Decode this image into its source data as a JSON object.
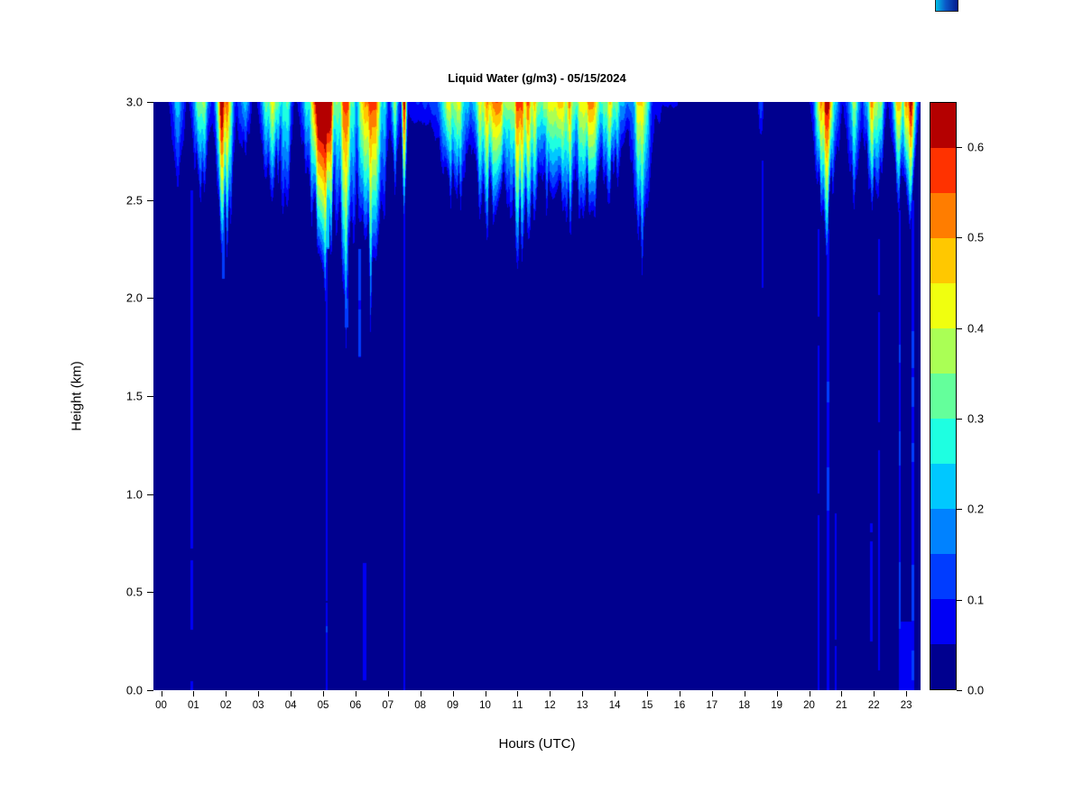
{
  "page": {
    "background": "#ffffff"
  },
  "chart_data": {
    "type": "heatmap",
    "title": "Liquid Water (g/m3) - 05/15/2024",
    "xlabel": "Hours (UTC)",
    "ylabel": "Height (km)",
    "units": "g/m3",
    "x_range_hours": [
      0,
      24
    ],
    "y_range_km": [
      0.0,
      3.0
    ],
    "x_ticks": [
      "00",
      "01",
      "02",
      "03",
      "04",
      "05",
      "06",
      "07",
      "08",
      "09",
      "10",
      "11",
      "12",
      "13",
      "14",
      "15",
      "16",
      "17",
      "18",
      "19",
      "20",
      "21",
      "22",
      "23"
    ],
    "y_ticks": [
      "0.0",
      "0.5",
      "1.0",
      "1.5",
      "2.0",
      "2.5",
      "3.0"
    ],
    "background_value_gm3": 0.02,
    "colorbar": {
      "levels": [
        0,
        0.05,
        0.1,
        0.15,
        0.2,
        0.25,
        0.3,
        0.35,
        0.4,
        0.45,
        0.5,
        0.55,
        0.6,
        0.65
      ],
      "colors": [
        "#00008F",
        "#0000F5",
        "#003CFF",
        "#0082FF",
        "#00C8FF",
        "#1EFFE1",
        "#64FF9B",
        "#AAFF55",
        "#F0FF0F",
        "#FFC800",
        "#FF7D00",
        "#FF3200",
        "#B40000"
      ],
      "tick_values": [
        0.0,
        0.1,
        0.2,
        0.3,
        0.4,
        0.5,
        0.6
      ],
      "tick_labels": [
        "0.0",
        "0.1",
        "0.2",
        "0.3",
        "0.4",
        "0.5",
        "0.6"
      ]
    },
    "cloud_events": [
      {
        "t_center": 0.75,
        "width_h": 0.45,
        "peak_gm3": 0.2,
        "depth_km": 0.45,
        "seed": 1
      },
      {
        "t_center": 1.5,
        "width_h": 0.55,
        "peak_gm3": 0.32,
        "depth_km": 0.5,
        "seed": 2
      },
      {
        "t_center": 2.2,
        "width_h": 0.5,
        "peak_gm3": 0.62,
        "depth_km": 0.85,
        "seed": 3
      },
      {
        "t_center": 2.85,
        "width_h": 0.4,
        "peak_gm3": 0.24,
        "depth_km": 0.35,
        "seed": 4
      },
      {
        "t_center": 3.75,
        "width_h": 0.7,
        "peak_gm3": 0.42,
        "depth_km": 0.5,
        "seed": 5
      },
      {
        "t_center": 4.15,
        "width_h": 0.35,
        "peak_gm3": 0.36,
        "depth_km": 0.75,
        "seed": 6
      },
      {
        "t_center": 5.3,
        "width_h": 1.0,
        "peak_gm3": 0.66,
        "depth_km": 0.8,
        "seed": 7
      },
      {
        "t_center": 6.0,
        "width_h": 0.6,
        "peak_gm3": 0.5,
        "depth_km": 1.15,
        "seed": 8
      },
      {
        "t_center": 6.8,
        "width_h": 0.9,
        "peak_gm3": 0.5,
        "depth_km": 0.95,
        "seed": 9
      },
      {
        "t_center": 7.55,
        "width_h": 0.3,
        "peak_gm3": 0.34,
        "depth_km": 0.5,
        "seed": 10
      },
      {
        "t_center": 7.85,
        "width_h": 0.16,
        "peak_gm3": 0.56,
        "depth_km": 0.6,
        "seed": 11
      },
      {
        "t_center": 12.0,
        "width_h": 6.2,
        "peak_gm3": 0.34,
        "depth_km": 0.42,
        "seed": 12
      },
      {
        "t_center": 9.4,
        "width_h": 1.0,
        "peak_gm3": 0.38,
        "depth_km": 0.55,
        "seed": 13
      },
      {
        "t_center": 10.6,
        "width_h": 1.2,
        "peak_gm3": 0.48,
        "depth_km": 0.68,
        "seed": 14
      },
      {
        "t_center": 11.6,
        "width_h": 1.2,
        "peak_gm3": 0.5,
        "depth_km": 0.72,
        "seed": 15
      },
      {
        "t_center": 12.7,
        "width_h": 1.3,
        "peak_gm3": 0.48,
        "depth_km": 0.7,
        "seed": 16
      },
      {
        "t_center": 13.6,
        "width_h": 1.0,
        "peak_gm3": 0.46,
        "depth_km": 0.62,
        "seed": 17
      },
      {
        "t_center": 14.3,
        "width_h": 0.7,
        "peak_gm3": 0.4,
        "depth_km": 0.5,
        "seed": 18
      },
      {
        "t_center": 15.25,
        "width_h": 0.6,
        "peak_gm3": 0.4,
        "depth_km": 0.85,
        "seed": 19
      },
      {
        "t_center": 19.0,
        "width_h": 0.18,
        "peak_gm3": 0.14,
        "depth_km": 0.35,
        "seed": 20
      },
      {
        "t_center": 21.05,
        "width_h": 0.65,
        "peak_gm3": 0.56,
        "depth_km": 0.7,
        "seed": 21
      },
      {
        "t_center": 21.9,
        "width_h": 0.45,
        "peak_gm3": 0.32,
        "depth_km": 0.5,
        "seed": 22
      },
      {
        "t_center": 22.55,
        "width_h": 0.55,
        "peak_gm3": 0.5,
        "depth_km": 0.6,
        "seed": 23
      },
      {
        "t_center": 23.3,
        "width_h": 0.4,
        "peak_gm3": 0.42,
        "depth_km": 0.55,
        "seed": 24
      },
      {
        "t_center": 23.65,
        "width_h": 0.4,
        "peak_gm3": 0.6,
        "depth_km": 0.6,
        "seed": 25
      }
    ],
    "virga_streaks": [
      {
        "t": 1.2,
        "half_width_h": 0.03,
        "h_bottom_km": 0.0,
        "h_top_km": 2.55,
        "value_gm3": 0.08
      },
      {
        "t": 2.18,
        "half_width_h": 0.045,
        "h_bottom_km": 2.1,
        "h_top_km": 2.6,
        "value_gm3": 0.13
      },
      {
        "t": 5.42,
        "half_width_h": 0.04,
        "h_bottom_km": 0.0,
        "h_top_km": 2.35,
        "value_gm3": 0.09
      },
      {
        "t": 5.44,
        "half_width_h": 0.07,
        "h_bottom_km": 2.25,
        "h_top_km": 2.65,
        "value_gm3": 0.22
      },
      {
        "t": 6.05,
        "half_width_h": 0.05,
        "h_bottom_km": 1.85,
        "h_top_km": 2.3,
        "value_gm3": 0.13
      },
      {
        "t": 6.45,
        "half_width_h": 0.045,
        "h_bottom_km": 1.7,
        "h_top_km": 2.25,
        "value_gm3": 0.12
      },
      {
        "t": 6.6,
        "half_width_h": 0.05,
        "h_bottom_km": 0.05,
        "h_top_km": 0.65,
        "value_gm3": 0.09
      },
      {
        "t": 7.85,
        "half_width_h": 0.025,
        "h_bottom_km": 0.0,
        "h_top_km": 2.45,
        "value_gm3": 0.09
      },
      {
        "t": 19.05,
        "half_width_h": 0.03,
        "h_bottom_km": 2.05,
        "h_top_km": 2.7,
        "value_gm3": 0.08
      },
      {
        "t": 20.8,
        "half_width_h": 0.03,
        "h_bottom_km": 0.0,
        "h_top_km": 2.35,
        "value_gm3": 0.08
      },
      {
        "t": 21.1,
        "half_width_h": 0.035,
        "h_bottom_km": 0.0,
        "h_top_km": 2.35,
        "value_gm3": 0.1
      },
      {
        "t": 21.35,
        "half_width_h": 0.035,
        "h_bottom_km": 0.0,
        "h_top_km": 0.9,
        "value_gm3": 0.08
      },
      {
        "t": 22.45,
        "half_width_h": 0.04,
        "h_bottom_km": 0.25,
        "h_top_km": 0.85,
        "value_gm3": 0.08
      },
      {
        "t": 22.7,
        "half_width_h": 0.03,
        "h_bottom_km": 0.1,
        "h_top_km": 2.3,
        "value_gm3": 0.08
      },
      {
        "t": 23.35,
        "half_width_h": 0.035,
        "h_bottom_km": 0.0,
        "h_top_km": 2.45,
        "value_gm3": 0.1
      },
      {
        "t": 23.75,
        "half_width_h": 0.04,
        "h_bottom_km": 0.0,
        "h_top_km": 2.5,
        "value_gm3": 0.12
      },
      {
        "t": 23.55,
        "half_width_h": 0.18,
        "h_bottom_km": 0.0,
        "h_top_km": 0.35,
        "value_gm3": 0.08
      }
    ]
  },
  "decor": {
    "corner_artifact_colors": [
      "#00bfe8",
      "#051c8c"
    ]
  }
}
